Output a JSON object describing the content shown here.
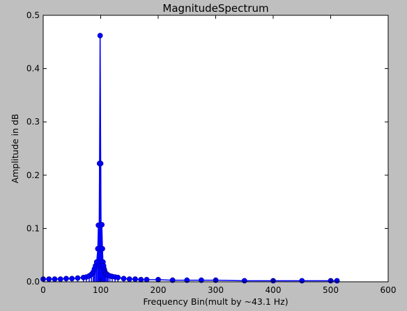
{
  "chart_data": {
    "type": "line",
    "title": "MagnitudeSpectrum",
    "xlabel": "Frequency Bin(mult by ~43.1 Hz)",
    "ylabel": "Amplitude in dB",
    "xlim": [
      0,
      600
    ],
    "ylim": [
      0,
      0.5
    ],
    "xticks": [
      "0",
      "100",
      "200",
      "300",
      "400",
      "500",
      "600"
    ],
    "yticks": [
      "0.0",
      "0.1",
      "0.2",
      "0.3",
      "0.4",
      "0.5"
    ],
    "grid": false,
    "legend": "none",
    "markers": true,
    "stem_to_zero": true,
    "series": [
      {
        "color": "#0000ff",
        "x": [
          0,
          10,
          20,
          30,
          40,
          50,
          60,
          70,
          75,
          80,
          84,
          87,
          89,
          91,
          93,
          95,
          96,
          97,
          98,
          99,
          100,
          101,
          102,
          103,
          104,
          105,
          106,
          107,
          108,
          109,
          111,
          113,
          116,
          120,
          125,
          130,
          140,
          150,
          160,
          170,
          180,
          200,
          225,
          250,
          275,
          300,
          350,
          400,
          450,
          500,
          511
        ],
        "y": [
          0.005,
          0.005,
          0.005,
          0.005,
          0.006,
          0.006,
          0.007,
          0.008,
          0.009,
          0.011,
          0.014,
          0.018,
          0.024,
          0.03,
          0.037,
          0.062,
          0.106,
          0.03,
          0.222,
          0.462,
          0.222,
          0.03,
          0.107,
          0.062,
          0.037,
          0.03,
          0.024,
          0.02,
          0.017,
          0.015,
          0.014,
          0.012,
          0.011,
          0.01,
          0.009,
          0.008,
          0.006,
          0.005,
          0.005,
          0.004,
          0.004,
          0.004,
          0.003,
          0.003,
          0.003,
          0.003,
          0.002,
          0.002,
          0.002,
          0.002,
          0.002
        ]
      }
    ]
  }
}
